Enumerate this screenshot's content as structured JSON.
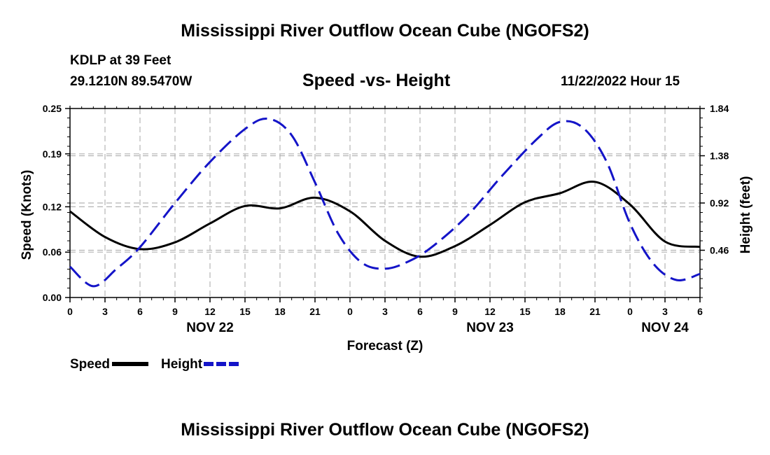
{
  "page": {
    "title_top": "Mississippi River Outflow Ocean Cube (NGOFS2)",
    "title_bottom": "Mississippi River Outflow Ocean Cube (NGOFS2)",
    "station": "KDLP at 39 Feet",
    "coords": "29.1210N  89.5470W",
    "plot_title": "Speed -vs- Height",
    "datetime": "11/22/2022 Hour 15"
  },
  "chart_data": {
    "type": "line",
    "title": "Speed -vs- Height",
    "xlabel": "Forecast (Z)",
    "ylabel": "Speed (Knots)",
    "y2label": "Height (feet)",
    "x_range_hours": [
      0,
      54
    ],
    "x_tick_hours": [
      0,
      3,
      6,
      9,
      12,
      15,
      18,
      21,
      24,
      27,
      30,
      33,
      36,
      39,
      42,
      45,
      48,
      51,
      54
    ],
    "x_tick_labels": [
      "0",
      "3",
      "6",
      "9",
      "12",
      "15",
      "18",
      "21",
      "0",
      "3",
      "6",
      "9",
      "12",
      "15",
      "18",
      "21",
      "0",
      "3",
      "6"
    ],
    "date_labels": [
      {
        "hour": 12,
        "label": "NOV 22"
      },
      {
        "hour": 36,
        "label": "NOV 23"
      },
      {
        "hour": 51,
        "label": "NOV 24"
      }
    ],
    "ylim": [
      0,
      0.25
    ],
    "y_ticks": [
      0.0,
      0.06,
      0.12,
      0.19,
      0.25
    ],
    "y_tick_labels": [
      "0.00",
      "0.06",
      "0.12",
      "0.19",
      "0.25"
    ],
    "y2lim": [
      0.0,
      1.84
    ],
    "y2_ticks": [
      0.46,
      0.92,
      1.38,
      1.84
    ],
    "y2_tick_labels": [
      "0.46",
      "0.92",
      "1.38",
      "1.84"
    ],
    "grid": true,
    "series": [
      {
        "name": "Speed",
        "axis": "left",
        "color": "#000000",
        "style": "solid",
        "points": [
          [
            0,
            0.114
          ],
          [
            3,
            0.08
          ],
          [
            6,
            0.064
          ],
          [
            9,
            0.073
          ],
          [
            12,
            0.098
          ],
          [
            15,
            0.121
          ],
          [
            18,
            0.118
          ],
          [
            21,
            0.132
          ],
          [
            24,
            0.114
          ],
          [
            27,
            0.075
          ],
          [
            30,
            0.054
          ],
          [
            33,
            0.068
          ],
          [
            36,
            0.096
          ],
          [
            39,
            0.126
          ],
          [
            42,
            0.138
          ],
          [
            45,
            0.153
          ],
          [
            48,
            0.123
          ],
          [
            51,
            0.074
          ],
          [
            54,
            0.067
          ]
        ]
      },
      {
        "name": "Height",
        "axis": "right",
        "color": "#1414c8",
        "style": "dashed",
        "points": [
          [
            0,
            0.3
          ],
          [
            2,
            0.11
          ],
          [
            4,
            0.28
          ],
          [
            6,
            0.49
          ],
          [
            9,
            0.92
          ],
          [
            12,
            1.32
          ],
          [
            15,
            1.64
          ],
          [
            17,
            1.74
          ],
          [
            19,
            1.58
          ],
          [
            21,
            1.12
          ],
          [
            23,
            0.62
          ],
          [
            25,
            0.34
          ],
          [
            27,
            0.28
          ],
          [
            29,
            0.35
          ],
          [
            31,
            0.49
          ],
          [
            34,
            0.79
          ],
          [
            37,
            1.18
          ],
          [
            40,
            1.54
          ],
          [
            42,
            1.71
          ],
          [
            44,
            1.65
          ],
          [
            46,
            1.32
          ],
          [
            48,
            0.72
          ],
          [
            50,
            0.33
          ],
          [
            52,
            0.17
          ],
          [
            54,
            0.23
          ]
        ]
      }
    ],
    "legend": [
      {
        "label": "Speed",
        "color": "#000000",
        "style": "solid"
      },
      {
        "label": "Height",
        "color": "#1414c8",
        "style": "dashed"
      }
    ],
    "legend_position": "bottom-left"
  }
}
